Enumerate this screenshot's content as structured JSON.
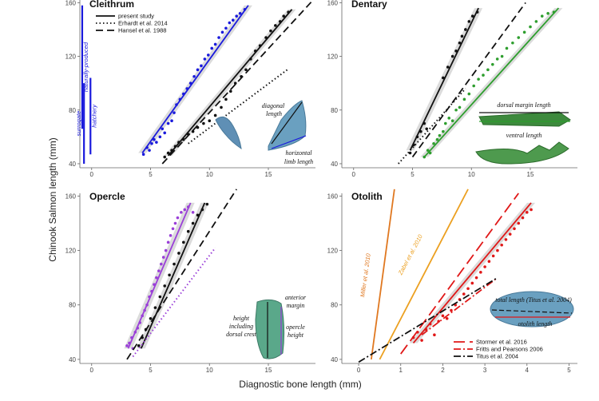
{
  "xlabel": "Diagnostic bone length (mm)",
  "ylabel": "Chinook Salmon length (mm)",
  "colors": {
    "cleithrum": "#1a1adc",
    "dentary": "#2e9e2e",
    "opercle": "#9a3fd8",
    "otolith": "#e01818",
    "black": "#111111",
    "miller": "#e07820",
    "zabel": "#eca020"
  },
  "chart_data": [
    {
      "type": "scatter",
      "panel": "Cleithrum",
      "title": "Cleithrum",
      "xlim": [
        -1,
        19
      ],
      "ylim": [
        37,
        162
      ],
      "xticks": [
        0,
        5,
        10,
        15
      ],
      "yticks": [
        40,
        80,
        120,
        160
      ],
      "legend": [
        {
          "label": "present study",
          "style": "solid"
        },
        {
          "label": "Erhardt et al. 2014",
          "style": "dotted"
        },
        {
          "label": "Hansel et al. 1988",
          "style": "dashed"
        }
      ],
      "range_bars": [
        {
          "label": "naturally-produced",
          "x": -0.8,
          "y": [
            66,
            158
          ]
        },
        {
          "label": "hatchery",
          "x": -0.1,
          "y": [
            47,
            104
          ]
        },
        {
          "label": "surrogate",
          "x": -0.65,
          "y": [
            40,
            100
          ]
        }
      ],
      "series": [
        {
          "name": "present study",
          "points": [
            [
              4.4,
              47
            ],
            [
              4.7,
              52
            ],
            [
              4.9,
              50
            ],
            [
              5.1,
              55
            ],
            [
              5.3,
              58
            ],
            [
              5.5,
              56
            ],
            [
              5.8,
              60
            ],
            [
              6.0,
              66
            ],
            [
              6.2,
              63
            ],
            [
              6.5,
              70
            ],
            [
              6.8,
              72
            ],
            [
              7.0,
              78
            ],
            [
              7.2,
              84
            ],
            [
              7.5,
              88
            ],
            [
              7.8,
              92
            ],
            [
              8.1,
              96
            ],
            [
              8.4,
              100
            ],
            [
              8.7,
              105
            ],
            [
              9.0,
              110
            ],
            [
              9.3,
              113
            ],
            [
              9.6,
              118
            ],
            [
              9.9,
              121
            ],
            [
              10.2,
              126
            ],
            [
              10.5,
              129
            ],
            [
              10.8,
              134
            ],
            [
              11.1,
              138
            ],
            [
              11.4,
              141
            ],
            [
              11.7,
              145
            ],
            [
              12.0,
              147
            ],
            [
              12.3,
              150
            ],
            [
              12.6,
              152
            ],
            [
              13.0,
              155
            ]
          ],
          "line": [
            [
              4.3,
              48
            ],
            [
              13.3,
              158
            ]
          ]
        },
        {
          "name": "present study (black)",
          "points": [
            [
              6.2,
              45
            ],
            [
              6.5,
              48
            ],
            [
              6.8,
              50
            ],
            [
              7.1,
              53
            ],
            [
              7.4,
              56
            ],
            [
              7.8,
              58
            ],
            [
              8.2,
              62
            ],
            [
              8.6,
              64
            ],
            [
              9.0,
              67
            ],
            [
              9.5,
              70
            ],
            [
              10.0,
              72
            ],
            [
              10.5,
              76
            ],
            [
              11.0,
              82
            ],
            [
              11.4,
              88
            ],
            [
              11.8,
              94
            ],
            [
              12.2,
              100
            ],
            [
              12.7,
              105
            ],
            [
              13.1,
              110
            ],
            [
              13.5,
              118
            ],
            [
              13.9,
              124
            ],
            [
              14.3,
              128
            ],
            [
              14.8,
              134
            ],
            [
              15.2,
              139
            ],
            [
              15.6,
              143
            ],
            [
              16.0,
              146
            ],
            [
              16.3,
              150
            ],
            [
              16.7,
              153
            ]
          ],
          "line": [
            [
              6.5,
              46
            ],
            [
              17.0,
              155
            ]
          ]
        },
        {
          "name": "Erhardt et al. 2014",
          "line": [
            [
              8.2,
              55
            ],
            [
              16.6,
              110
            ]
          ]
        },
        {
          "name": "Hansel et al. 1988",
          "line": [
            [
              6.0,
              40
            ],
            [
              18.8,
              162
            ]
          ]
        }
      ]
    },
    {
      "type": "scatter",
      "panel": "Dentary",
      "title": "Dentary",
      "xlim": [
        -1,
        19
      ],
      "ylim": [
        37,
        162
      ],
      "xticks": [
        0,
        5,
        10,
        15
      ],
      "yticks": [
        40,
        80,
        120,
        160
      ],
      "annotations": [
        "dorsal margin length",
        "ventral length"
      ],
      "series": [
        {
          "name": "present study",
          "points": [
            [
              6.0,
              45
            ],
            [
              6.3,
              50
            ],
            [
              6.5,
              48
            ],
            [
              6.8,
              55
            ],
            [
              7.1,
              58
            ],
            [
              7.3,
              61
            ],
            [
              7.6,
              64
            ],
            [
              7.8,
              70
            ],
            [
              8.1,
              74
            ],
            [
              8.4,
              72
            ],
            [
              8.7,
              80
            ],
            [
              9.0,
              82
            ],
            [
              9.4,
              88
            ],
            [
              9.8,
              92
            ],
            [
              10.2,
              98
            ],
            [
              10.6,
              103
            ],
            [
              11.0,
              106
            ],
            [
              11.4,
              110
            ],
            [
              11.8,
              114
            ],
            [
              12.2,
              118
            ],
            [
              12.6,
              120
            ],
            [
              13.0,
              126
            ],
            [
              13.5,
              130
            ],
            [
              14.0,
              134
            ],
            [
              14.5,
              138
            ],
            [
              15.0,
              142
            ],
            [
              15.5,
              146
            ],
            [
              16.0,
              150
            ],
            [
              16.5,
              152
            ],
            [
              17.0,
              153
            ]
          ],
          "line": [
            [
              6.0,
              45
            ],
            [
              17.4,
              156
            ]
          ]
        },
        {
          "name": "present study (black)",
          "points": [
            [
              4.8,
              48
            ],
            [
              5.1,
              54
            ],
            [
              5.4,
              60
            ],
            [
              5.7,
              64
            ],
            [
              6.0,
              70
            ],
            [
              6.2,
              66
            ],
            [
              7.6,
              104
            ],
            [
              8.0,
              112
            ],
            [
              8.4,
              120
            ],
            [
              8.7,
              124
            ],
            [
              9.0,
              130
            ],
            [
              9.2,
              135
            ],
            [
              9.5,
              140
            ],
            [
              9.8,
              146
            ],
            [
              10.1,
              150
            ],
            [
              10.5,
              153
            ]
          ],
          "line": [
            [
              4.8,
              50
            ],
            [
              10.6,
              156
            ]
          ]
        },
        {
          "name": "Hansel et al. 1988",
          "line": [
            [
              5.0,
              45
            ],
            [
              14.6,
              160
            ]
          ]
        },
        {
          "name": "Erhardt et al. 2014",
          "line": [
            [
              3.8,
              40
            ],
            [
              9.5,
              96
            ]
          ]
        }
      ]
    },
    {
      "type": "scatter",
      "panel": "Opercle",
      "title": "Opercle",
      "xlim": [
        -1,
        19
      ],
      "ylim": [
        37,
        162
      ],
      "xticks": [
        0,
        5,
        10,
        15
      ],
      "yticks": [
        40,
        80,
        120,
        160
      ],
      "annotations": [
        "anterior margin",
        "height including dorsal crest",
        "opercle height"
      ],
      "series": [
        {
          "name": "present study",
          "points": [
            [
              3.0,
              50
            ],
            [
              3.2,
              52
            ],
            [
              3.4,
              56
            ],
            [
              3.5,
              48
            ],
            [
              3.7,
              60
            ],
            [
              3.9,
              63
            ],
            [
              4.1,
              67
            ],
            [
              4.3,
              72
            ],
            [
              4.5,
              76
            ],
            [
              4.7,
              80
            ],
            [
              4.9,
              86
            ],
            [
              5.1,
              90
            ],
            [
              5.3,
              95
            ],
            [
              5.5,
              100
            ],
            [
              5.7,
              105
            ],
            [
              5.9,
              110
            ],
            [
              6.1,
              115
            ],
            [
              6.3,
              120
            ],
            [
              6.5,
              126
            ],
            [
              6.7,
              131
            ],
            [
              6.9,
              136
            ],
            [
              7.1,
              140
            ],
            [
              7.3,
              144
            ],
            [
              7.6,
              148
            ],
            [
              7.9,
              150
            ],
            [
              8.2,
              152
            ],
            [
              8.6,
              148
            ]
          ],
          "line": [
            [
              3.1,
              48
            ],
            [
              8.4,
              155
            ]
          ]
        },
        {
          "name": "present study (black)",
          "points": [
            [
              4.0,
              50
            ],
            [
              4.3,
              56
            ],
            [
              4.6,
              62
            ],
            [
              5.0,
              70
            ],
            [
              5.4,
              78
            ],
            [
              5.8,
              86
            ],
            [
              6.2,
              94
            ],
            [
              6.6,
              102
            ],
            [
              7.0,
              110
            ],
            [
              7.4,
              118
            ],
            [
              7.8,
              126
            ],
            [
              8.2,
              134
            ],
            [
              8.6,
              140
            ],
            [
              9.0,
              146
            ],
            [
              9.4,
              150
            ],
            [
              9.8,
              154
            ]
          ],
          "line": [
            [
              4.2,
              48
            ],
            [
              9.6,
              155
            ]
          ]
        },
        {
          "name": "Erhardt et al. 2014",
          "line": [
            [
              3.5,
              42
            ],
            [
              10.5,
              122
            ]
          ]
        },
        {
          "name": "Hansel et al. 1988",
          "line": [
            [
              3.0,
              40
            ],
            [
              12.3,
              165
            ]
          ]
        }
      ]
    },
    {
      "type": "scatter",
      "panel": "Otolith",
      "title": "Otolith",
      "xlim": [
        -0.4,
        5.2
      ],
      "ylim": [
        37,
        162
      ],
      "xticks": [
        0,
        1,
        2,
        3,
        4,
        5
      ],
      "yticks": [
        40,
        80,
        120,
        160
      ],
      "annotations": [
        "Miller et al. 2010",
        "Zabel et al. 2010",
        "total length (Titus et al. 2004)",
        "otolith length"
      ],
      "legend": [
        {
          "label": "Stormer et al. 2016",
          "style": "longdash"
        },
        {
          "label": "Fritts and Pearsons 2006",
          "style": "dashdot"
        },
        {
          "label": "Titus et al. 2004",
          "style": "dashdot"
        }
      ],
      "series": [
        {
          "name": "present study",
          "points": [
            [
              1.3,
              56
            ],
            [
              1.4,
              60
            ],
            [
              1.5,
              54
            ],
            [
              1.6,
              62
            ],
            [
              1.7,
              66
            ],
            [
              1.8,
              58
            ],
            [
              1.9,
              68
            ],
            [
              2.0,
              72
            ],
            [
              2.1,
              70
            ],
            [
              2.2,
              76
            ],
            [
              2.3,
              80
            ],
            [
              2.4,
              84
            ],
            [
              2.5,
              88
            ],
            [
              2.6,
              92
            ],
            [
              2.7,
              96
            ],
            [
              2.8,
              100
            ],
            [
              2.9,
              104
            ],
            [
              3.0,
              108
            ],
            [
              3.1,
              112
            ],
            [
              3.2,
              116
            ],
            [
              3.3,
              120
            ],
            [
              3.4,
              124
            ],
            [
              3.5,
              128
            ],
            [
              3.6,
              132
            ],
            [
              3.7,
              136
            ],
            [
              3.8,
              140
            ],
            [
              3.9,
              144
            ],
            [
              4.0,
              148
            ],
            [
              4.1,
              150
            ]
          ],
          "line": [
            [
              1.3,
              52
            ],
            [
              4.1,
              155
            ]
          ]
        },
        {
          "name": "Miller et al. 2010",
          "line": [
            [
              0.3,
              40
            ],
            [
              0.85,
              165
            ]
          ]
        },
        {
          "name": "Zabel et al. 2010",
          "line": [
            [
              0.5,
              40
            ],
            [
              2.6,
              165
            ]
          ]
        },
        {
          "name": "Stormer et al. 2016",
          "line": [
            [
              1.0,
              44
            ],
            [
              3.8,
              162
            ]
          ]
        },
        {
          "name": "Fritts and Pearsons 2006",
          "line": [
            [
              1.5,
              58
            ],
            [
              3.3,
              100
            ]
          ]
        },
        {
          "name": "Titus et al. 2004",
          "line": [
            [
              0.0,
              38
            ],
            [
              3.3,
              100
            ]
          ]
        }
      ]
    }
  ]
}
